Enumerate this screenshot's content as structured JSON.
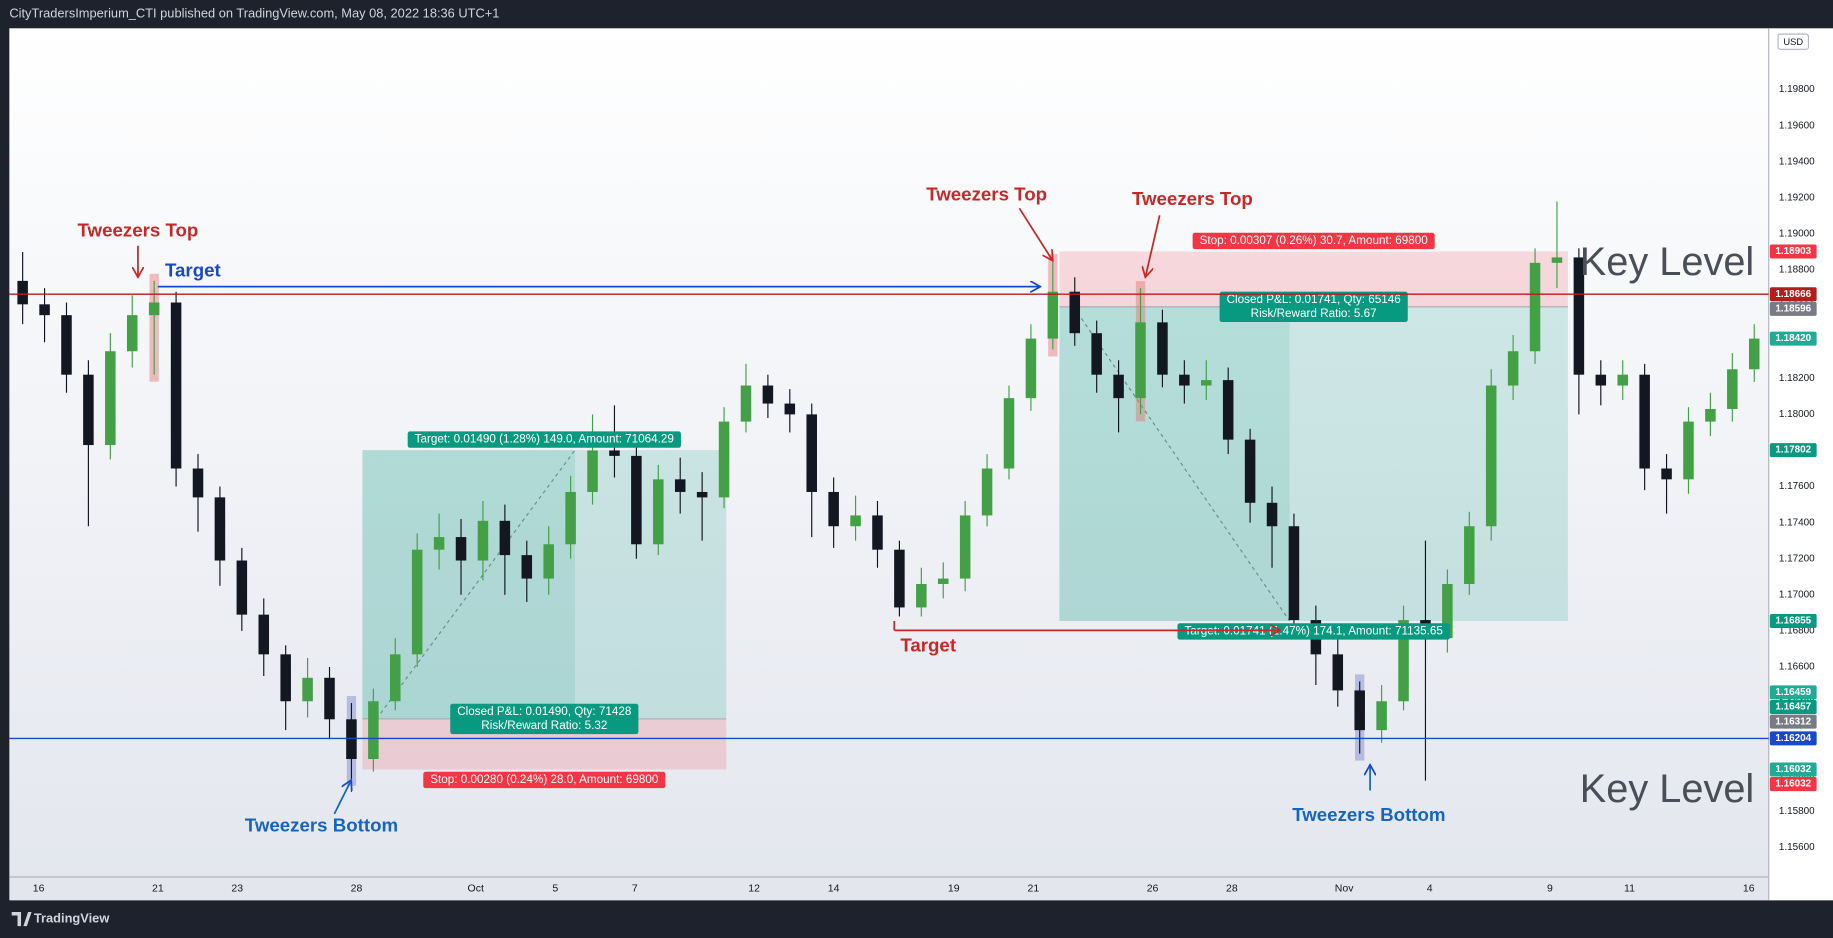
{
  "chart_data": {
    "type": "candlestick",
    "title": "CityTradersImperium_CTI published on TradingView.com, May 08, 2022 18:36 UTC+1",
    "brand": "TradingView",
    "currency": "USD",
    "up_color": "#43a047",
    "down_color": "#131722",
    "xlim": [
      -0.5,
      79.5
    ],
    "xticks": [
      {
        "value": 0.73,
        "label": "16"
      },
      {
        "value": 6.17,
        "label": "21"
      },
      {
        "value": 9.79,
        "label": "23"
      },
      {
        "value": 15.23,
        "label": "28"
      },
      {
        "value": 20.67,
        "label": "Oct"
      },
      {
        "value": 24.3,
        "label": "5"
      },
      {
        "value": 27.93,
        "label": "7"
      },
      {
        "value": 33.37,
        "label": "12"
      },
      {
        "value": 37.0,
        "label": "14"
      },
      {
        "value": 42.48,
        "label": "19"
      },
      {
        "value": 46.11,
        "label": "21"
      },
      {
        "value": 51.55,
        "label": "26"
      },
      {
        "value": 55.17,
        "label": "28"
      },
      {
        "value": 60.29,
        "label": "Nov"
      },
      {
        "value": 64.19,
        "label": "4"
      },
      {
        "value": 69.68,
        "label": "9"
      },
      {
        "value": 73.31,
        "label": "11"
      },
      {
        "value": 78.75,
        "label": "16"
      }
    ],
    "ylim": [
      1.15436,
      1.2014
    ],
    "yticks": [
      {
        "value": 1.156,
        "label": "1.15600"
      },
      {
        "value": 1.158,
        "label": "1.15800"
      },
      {
        "value": 1.16,
        "label": "1.16000"
      },
      {
        "value": 1.162,
        "label": "1.16200"
      },
      {
        "value": 1.164,
        "label": "1.16400"
      },
      {
        "value": 1.166,
        "label": "1.16600"
      },
      {
        "value": 1.168,
        "label": "1.16800"
      },
      {
        "value": 1.17,
        "label": "1.17000"
      },
      {
        "value": 1.172,
        "label": "1.17200"
      },
      {
        "value": 1.174,
        "label": "1.17400"
      },
      {
        "value": 1.176,
        "label": "1.17600"
      },
      {
        "value": 1.178,
        "label": "1.17800"
      },
      {
        "value": 1.18,
        "label": "1.18000"
      },
      {
        "value": 1.182,
        "label": "1.18200"
      },
      {
        "value": 1.184,
        "label": "1.18400"
      },
      {
        "value": 1.186,
        "label": "1.18600"
      },
      {
        "value": 1.188,
        "label": "1.18800"
      },
      {
        "value": 1.19,
        "label": "1.19000"
      },
      {
        "value": 1.192,
        "label": "1.19200"
      },
      {
        "value": 1.194,
        "label": "1.19400"
      },
      {
        "value": 1.196,
        "label": "1.19600"
      },
      {
        "value": 1.198,
        "label": "1.19800"
      }
    ],
    "ohlc": [
      [
        1.1874,
        1.189,
        1.185,
        1.1861
      ],
      [
        1.1861,
        1.187,
        1.184,
        1.1855
      ],
      [
        1.1855,
        1.1862,
        1.1812,
        1.1822
      ],
      [
        1.1822,
        1.183,
        1.1738,
        1.1783
      ],
      [
        1.1783,
        1.1845,
        1.1775,
        1.1835
      ],
      [
        1.1835,
        1.1866,
        1.1826,
        1.1855
      ],
      [
        1.1855,
        1.1874,
        1.1822,
        1.1862
      ],
      [
        1.1862,
        1.1868,
        1.176,
        1.177
      ],
      [
        1.177,
        1.1778,
        1.1735,
        1.1754
      ],
      [
        1.1754,
        1.176,
        1.1705,
        1.1719
      ],
      [
        1.1719,
        1.1726,
        1.168,
        1.1689
      ],
      [
        1.1689,
        1.1698,
        1.1655,
        1.1667
      ],
      [
        1.1667,
        1.1672,
        1.1625,
        1.1641
      ],
      [
        1.1641,
        1.1665,
        1.1632,
        1.1654
      ],
      [
        1.1654,
        1.166,
        1.162,
        1.1631
      ],
      [
        1.1631,
        1.164,
        1.1598,
        1.1609
      ],
      [
        1.1609,
        1.1648,
        1.1602,
        1.1641
      ],
      [
        1.1641,
        1.1676,
        1.1636,
        1.1667
      ],
      [
        1.1667,
        1.1734,
        1.166,
        1.1725
      ],
      [
        1.1725,
        1.1745,
        1.1714,
        1.1732
      ],
      [
        1.1732,
        1.1742,
        1.17,
        1.1719
      ],
      [
        1.1719,
        1.1752,
        1.1708,
        1.1741
      ],
      [
        1.1741,
        1.175,
        1.17,
        1.1722
      ],
      [
        1.1722,
        1.173,
        1.1696,
        1.1709
      ],
      [
        1.1709,
        1.1738,
        1.17,
        1.1728
      ],
      [
        1.1728,
        1.1766,
        1.172,
        1.1757
      ],
      [
        1.1757,
        1.18,
        1.175,
        1.178
      ],
      [
        1.178,
        1.1805,
        1.1765,
        1.1777
      ],
      [
        1.1777,
        1.1786,
        1.172,
        1.1728
      ],
      [
        1.1728,
        1.1772,
        1.1722,
        1.1764
      ],
      [
        1.1764,
        1.1776,
        1.1745,
        1.1757
      ],
      [
        1.1757,
        1.1768,
        1.173,
        1.1754
      ],
      [
        1.1754,
        1.1804,
        1.1748,
        1.1796
      ],
      [
        1.1796,
        1.1828,
        1.179,
        1.1816
      ],
      [
        1.1816,
        1.1822,
        1.1798,
        1.1806
      ],
      [
        1.1806,
        1.1814,
        1.179,
        1.18
      ],
      [
        1.18,
        1.1806,
        1.1732,
        1.1757
      ],
      [
        1.1757,
        1.1765,
        1.1726,
        1.1738
      ],
      [
        1.1738,
        1.1755,
        1.173,
        1.1744
      ],
      [
        1.1744,
        1.1752,
        1.1715,
        1.1725
      ],
      [
        1.1725,
        1.173,
        1.1688,
        1.1693
      ],
      [
        1.1693,
        1.1715,
        1.1688,
        1.1706
      ],
      [
        1.1706,
        1.1718,
        1.1698,
        1.1709
      ],
      [
        1.1709,
        1.1752,
        1.1702,
        1.1744
      ],
      [
        1.1744,
        1.1778,
        1.1738,
        1.177
      ],
      [
        1.177,
        1.1816,
        1.1764,
        1.1809
      ],
      [
        1.1809,
        1.185,
        1.1802,
        1.1842
      ],
      [
        1.1842,
        1.1885,
        1.1836,
        1.1868
      ],
      [
        1.1868,
        1.1876,
        1.1838,
        1.1845
      ],
      [
        1.1845,
        1.1852,
        1.1812,
        1.1822
      ],
      [
        1.1822,
        1.183,
        1.179,
        1.1809
      ],
      [
        1.1809,
        1.187,
        1.18,
        1.1851
      ],
      [
        1.1851,
        1.1858,
        1.1815,
        1.1822
      ],
      [
        1.1822,
        1.183,
        1.1806,
        1.1816
      ],
      [
        1.1816,
        1.183,
        1.1808,
        1.1819
      ],
      [
        1.1819,
        1.1826,
        1.1778,
        1.1786
      ],
      [
        1.1786,
        1.1792,
        1.174,
        1.1751
      ],
      [
        1.1751,
        1.176,
        1.1715,
        1.1738
      ],
      [
        1.1738,
        1.1745,
        1.1678,
        1.1686
      ],
      [
        1.1686,
        1.1694,
        1.165,
        1.1667
      ],
      [
        1.1667,
        1.1676,
        1.1638,
        1.1647
      ],
      [
        1.1647,
        1.1652,
        1.1612,
        1.1625
      ],
      [
        1.1625,
        1.165,
        1.1618,
        1.1641
      ],
      [
        1.1641,
        1.1694,
        1.1636,
        1.1686
      ],
      [
        1.1686,
        1.173,
        1.1597,
        1.1676
      ],
      [
        1.1676,
        1.1714,
        1.1668,
        1.1706
      ],
      [
        1.1706,
        1.1746,
        1.17,
        1.1738
      ],
      [
        1.1738,
        1.1825,
        1.173,
        1.1816
      ],
      [
        1.1816,
        1.1844,
        1.1808,
        1.1835
      ],
      [
        1.1835,
        1.1892,
        1.1828,
        1.1884
      ],
      [
        1.1884,
        1.1918,
        1.187,
        1.1887
      ],
      [
        1.1887,
        1.1892,
        1.18,
        1.1822
      ],
      [
        1.1822,
        1.183,
        1.1805,
        1.1816
      ],
      [
        1.1816,
        1.183,
        1.1808,
        1.1822
      ],
      [
        1.1822,
        1.1828,
        1.1758,
        1.177
      ],
      [
        1.177,
        1.1778,
        1.1745,
        1.1764
      ],
      [
        1.1764,
        1.1804,
        1.1756,
        1.1796
      ],
      [
        1.1796,
        1.1812,
        1.1788,
        1.1803
      ],
      [
        1.1803,
        1.1834,
        1.1796,
        1.1825
      ],
      [
        1.1825,
        1.185,
        1.1818,
        1.1842
      ]
    ],
    "positions": [
      {
        "start": 15.5,
        "end": 32.1,
        "exit": 25.2,
        "entry": 1.16312,
        "target": 1.17802,
        "stop": 1.16032,
        "target_label": "Target: 0.01490 (1.28%) 149.0, Amount: 71064.29",
        "closed_label": "Closed P&L: 0.01490, Qty: 71428",
        "ratio_label": "Risk/Reward Ratio: 5.32",
        "stop_label": "Stop: 0.00280 (0.24%) 28.0, Amount: 69800"
      },
      {
        "start": 47.3,
        "end": 70.5,
        "exit": 57.8,
        "entry": 1.18596,
        "target": 1.16855,
        "stop": 1.18903,
        "target_label": "Target: 0.01741 (1.47%) 174.1, Amount: 71135.65",
        "closed_label": "Closed P&L: 0.01741, Qty: 65146",
        "ratio_label": "Risk/Reward Ratio: 5.67",
        "stop_label": "Stop: 0.00307 (0.26%) 30.7, Amount: 69800"
      }
    ],
    "price_labels": [
      {
        "value": 1.18903,
        "label": "1.18903",
        "color": "#f23645"
      },
      {
        "value": 1.18666,
        "label": "1.18666",
        "color": "#b71c1c",
        "line": true
      },
      {
        "value": 1.18596,
        "label": "1.18596",
        "color": "#787b86"
      },
      {
        "value": 1.1842,
        "label": "1.18420",
        "color": "#22ab94"
      },
      {
        "value": 1.17802,
        "label": "1.17802",
        "color": "#089981"
      },
      {
        "value": 1.16855,
        "label": "1.16855",
        "color": "#089981"
      },
      {
        "value": 1.16459,
        "label": "1.16459",
        "color": "#22ab94"
      },
      {
        "value": 1.16457,
        "label": "1.16457",
        "color": "#089981"
      },
      {
        "value": 1.16312,
        "label": "1.16312",
        "color": "#787b86"
      },
      {
        "value": 1.16204,
        "label": "1.16204",
        "color": "#1848cc",
        "line": true
      },
      {
        "value": 1.16032,
        "label": "1.16032",
        "color": "#22ab94"
      },
      {
        "value": 1.16032,
        "label": "1.16032",
        "color": "#f23645"
      }
    ],
    "annotations": [
      {
        "text": "Tweezers Top",
        "color": "#c62828"
      },
      {
        "text": "Target",
        "color": "#1848cc"
      },
      {
        "text": "Tweezers Top",
        "color": "#c62828"
      },
      {
        "text": "Tweezers Top",
        "color": "#c62828"
      },
      {
        "text": "Target",
        "color": "#c62828"
      },
      {
        "text": "Tweezers Bottom",
        "color": "#1565c0"
      },
      {
        "text": "Tweezers Bottom",
        "color": "#1565c0"
      },
      {
        "text": "Key Level",
        "color": "#4a4e59"
      },
      {
        "text": "Key Level",
        "color": "#4a4e59"
      }
    ]
  }
}
